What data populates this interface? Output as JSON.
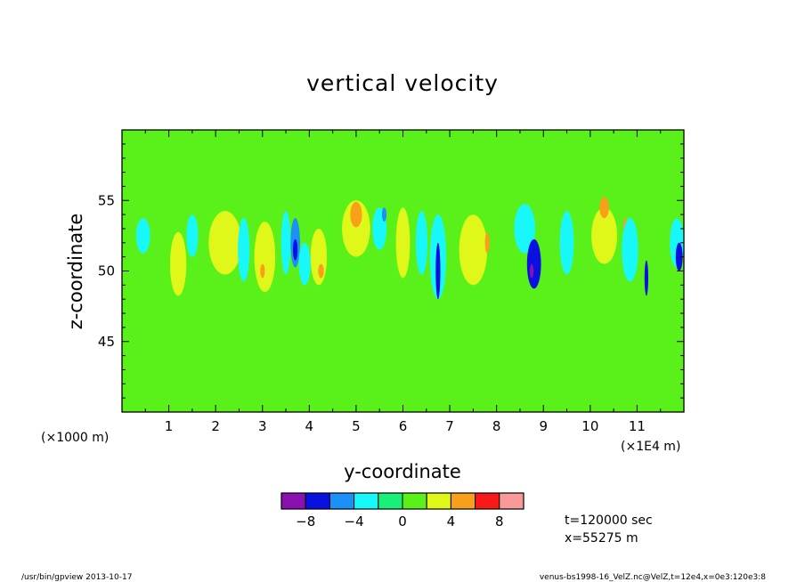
{
  "chart_data": {
    "type": "heatmap",
    "title": "vertical velocity",
    "xlabel": "y-coordinate",
    "ylabel": "z-coordinate",
    "x_unit_left": "(×1000 m)",
    "x_unit_right": "(×1E4 m)",
    "xlim": [
      0,
      12
    ],
    "ylim": [
      40,
      60
    ],
    "x_ticks": [
      {
        "value": 1,
        "label": "1"
      },
      {
        "value": 2,
        "label": "2"
      },
      {
        "value": 3,
        "label": "3"
      },
      {
        "value": 4,
        "label": "4"
      },
      {
        "value": 5,
        "label": "5"
      },
      {
        "value": 6,
        "label": "6"
      },
      {
        "value": 7,
        "label": "7"
      },
      {
        "value": 8,
        "label": "8"
      },
      {
        "value": 9,
        "label": "9"
      },
      {
        "value": 10,
        "label": "10"
      },
      {
        "value": 11,
        "label": "11"
      }
    ],
    "y_ticks": [
      {
        "value": 45,
        "label": "45"
      },
      {
        "value": 50,
        "label": "50"
      },
      {
        "value": 55,
        "label": "55"
      }
    ],
    "colorbar": {
      "levels": [
        -10,
        -8,
        -6,
        -4,
        -2,
        0,
        2,
        4,
        6,
        8,
        10
      ],
      "colors": [
        "#8a10b0",
        "#0a10e0",
        "#1a90f8",
        "#19f8f8",
        "#19f07a",
        "#5af019",
        "#e0f819",
        "#f8a019",
        "#f81919",
        "#f89a9a"
      ],
      "tick_labels": [
        {
          "value": -8,
          "label": "−8"
        },
        {
          "value": -4,
          "label": "−4"
        },
        {
          "value": 0,
          "label": "0"
        },
        {
          "value": 4,
          "label": "4"
        },
        {
          "value": 8,
          "label": "8"
        }
      ]
    },
    "features": [
      {
        "class": 5,
        "y": 0.5,
        "z": 55.0,
        "dy": 0.4,
        "dz": 1.5
      },
      {
        "class": 3,
        "y": 0.45,
        "z": 52.5,
        "dy": 0.3,
        "dz": 2.5
      },
      {
        "class": 6,
        "y": 1.2,
        "z": 50.5,
        "dy": 0.35,
        "dz": 4.5
      },
      {
        "class": 3,
        "y": 1.5,
        "z": 52.5,
        "dy": 0.25,
        "dz": 3.0
      },
      {
        "class": 6,
        "y": 2.2,
        "z": 52.0,
        "dy": 0.7,
        "dz": 4.5
      },
      {
        "class": 3,
        "y": 2.6,
        "z": 51.5,
        "dy": 0.25,
        "dz": 4.5
      },
      {
        "class": 6,
        "y": 3.05,
        "z": 51.0,
        "dy": 0.45,
        "dz": 5.0
      },
      {
        "class": 7,
        "y": 3.0,
        "z": 50.0,
        "dy": 0.1,
        "dz": 1.0
      },
      {
        "class": 3,
        "y": 3.5,
        "z": 52.0,
        "dy": 0.2,
        "dz": 4.5
      },
      {
        "class": 2,
        "y": 3.7,
        "z": 52.0,
        "dy": 0.2,
        "dz": 3.5
      },
      {
        "class": 1,
        "y": 3.7,
        "z": 51.5,
        "dy": 0.1,
        "dz": 1.5
      },
      {
        "class": 3,
        "y": 3.9,
        "z": 50.5,
        "dy": 0.25,
        "dz": 3.0
      },
      {
        "class": 6,
        "y": 4.2,
        "z": 51.0,
        "dy": 0.35,
        "dz": 4.0
      },
      {
        "class": 7,
        "y": 4.25,
        "z": 50.0,
        "dy": 0.12,
        "dz": 1.0
      },
      {
        "class": 6,
        "y": 5.0,
        "z": 53.0,
        "dy": 0.6,
        "dz": 4.0
      },
      {
        "class": 7,
        "y": 5.0,
        "z": 54.0,
        "dy": 0.25,
        "dz": 1.8
      },
      {
        "class": 3,
        "y": 5.5,
        "z": 53.0,
        "dy": 0.3,
        "dz": 3.0
      },
      {
        "class": 2,
        "y": 5.6,
        "z": 54.0,
        "dy": 0.1,
        "dz": 1.0
      },
      {
        "class": 6,
        "y": 6.0,
        "z": 52.0,
        "dy": 0.3,
        "dz": 5.0
      },
      {
        "class": 3,
        "y": 6.4,
        "z": 52.0,
        "dy": 0.25,
        "dz": 4.5
      },
      {
        "class": 3,
        "y": 6.75,
        "z": 51.0,
        "dy": 0.35,
        "dz": 6.0
      },
      {
        "class": 1,
        "y": 6.75,
        "z": 50.0,
        "dy": 0.1,
        "dz": 4.0
      },
      {
        "class": 6,
        "y": 7.5,
        "z": 51.5,
        "dy": 0.6,
        "dz": 5.0
      },
      {
        "class": 7,
        "y": 7.8,
        "z": 52.0,
        "dy": 0.1,
        "dz": 1.5
      },
      {
        "class": 3,
        "y": 8.6,
        "z": 53.0,
        "dy": 0.45,
        "dz": 3.5
      },
      {
        "class": 1,
        "y": 8.8,
        "z": 50.5,
        "dy": 0.3,
        "dz": 3.5
      },
      {
        "class": 0,
        "y": 8.75,
        "z": 50.0,
        "dy": 0.08,
        "dz": 1.0
      },
      {
        "class": 3,
        "y": 9.5,
        "z": 52.0,
        "dy": 0.3,
        "dz": 4.5
      },
      {
        "class": 6,
        "y": 10.3,
        "z": 52.5,
        "dy": 0.55,
        "dz": 4.0
      },
      {
        "class": 7,
        "y": 10.3,
        "z": 54.5,
        "dy": 0.2,
        "dz": 1.5
      },
      {
        "class": 7,
        "y": 10.75,
        "z": 53.0,
        "dy": 0.1,
        "dz": 1.5
      },
      {
        "class": 3,
        "y": 10.85,
        "z": 51.5,
        "dy": 0.35,
        "dz": 4.5
      },
      {
        "class": 1,
        "y": 11.2,
        "z": 49.5,
        "dy": 0.08,
        "dz": 2.5
      },
      {
        "class": 3,
        "y": 11.85,
        "z": 52.0,
        "dy": 0.3,
        "dz": 3.5
      },
      {
        "class": 1,
        "y": 11.9,
        "z": 51.0,
        "dy": 0.15,
        "dz": 2.0
      }
    ]
  },
  "info": {
    "time": "t=120000 sec",
    "position": "x=55275 m"
  },
  "footer": {
    "left": "/usr/bin/gpview   2013-10-17",
    "right": "venus-bs1998-16_VelZ.nc@VelZ,t=12e4,x=0e3:120e3:8"
  }
}
